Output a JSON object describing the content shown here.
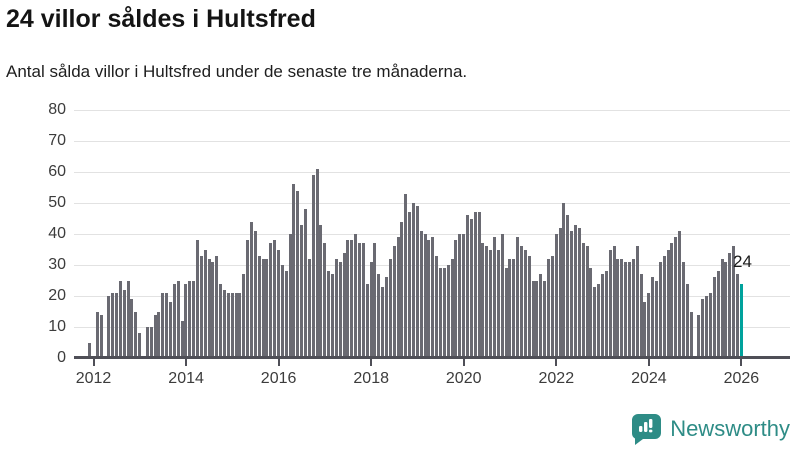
{
  "header": {
    "title": "24 villor såldes i Hultsfred",
    "subtitle": "Antal sålda villor i Hultsfred under de senaste tre månaderna."
  },
  "chart_data": {
    "type": "bar",
    "title": "24 villor såldes i Hultsfred",
    "xlabel": "",
    "ylabel": "",
    "ylim": [
      0,
      80
    ],
    "yticks": [
      0,
      10,
      20,
      30,
      40,
      50,
      60,
      70,
      80
    ],
    "xticks": [
      "2012",
      "2014",
      "2016",
      "2018",
      "2020",
      "2022",
      "2024",
      "2026"
    ],
    "grid": "horizontal",
    "frequency": "monthly",
    "period_start": "2012-01",
    "period_end": "2026-02",
    "bar_color": "#6a6a72",
    "highlight_color": "#00a29c",
    "highlight_last": true,
    "last_value_label": "24",
    "values": [
      5,
      0,
      15,
      14,
      0,
      20,
      21,
      21,
      25,
      22,
      25,
      19,
      15,
      8,
      0,
      10,
      10,
      14,
      15,
      21,
      21,
      18,
      24,
      25,
      12,
      24,
      25,
      25,
      38,
      33,
      35,
      32,
      31,
      33,
      24,
      22,
      21,
      21,
      21,
      21,
      27,
      38,
      44,
      41,
      33,
      32,
      32,
      37,
      38,
      35,
      30,
      28,
      40,
      56,
      54,
      43,
      48,
      32,
      59,
      61,
      43,
      37,
      28,
      27,
      32,
      31,
      34,
      38,
      38,
      40,
      37,
      37,
      24,
      31,
      37,
      27,
      23,
      26,
      32,
      36,
      39,
      44,
      53,
      47,
      50,
      49,
      41,
      40,
      38,
      39,
      33,
      29,
      29,
      30,
      32,
      38,
      40,
      40,
      46,
      45,
      47,
      47,
      37,
      36,
      35,
      39,
      35,
      40,
      29,
      32,
      32,
      39,
      36,
      35,
      33,
      25,
      25,
      27,
      25,
      32,
      33,
      40,
      42,
      50,
      46,
      41,
      43,
      42,
      37,
      36,
      29,
      23,
      24,
      27,
      28,
      35,
      36,
      32,
      32,
      31,
      31,
      32,
      36,
      27,
      18,
      21,
      26,
      25,
      31,
      33,
      35,
      37,
      39,
      41,
      31,
      24,
      15,
      0,
      14,
      19,
      20,
      21,
      26,
      28,
      32,
      31,
      34,
      36,
      27,
      24
    ]
  },
  "annotation": {
    "last_value": "24"
  },
  "footer": {
    "brand": "Newsworthy",
    "brand_color": "#2e8c86",
    "logo_icon": "bar-chart-speech-bubble-icon"
  }
}
